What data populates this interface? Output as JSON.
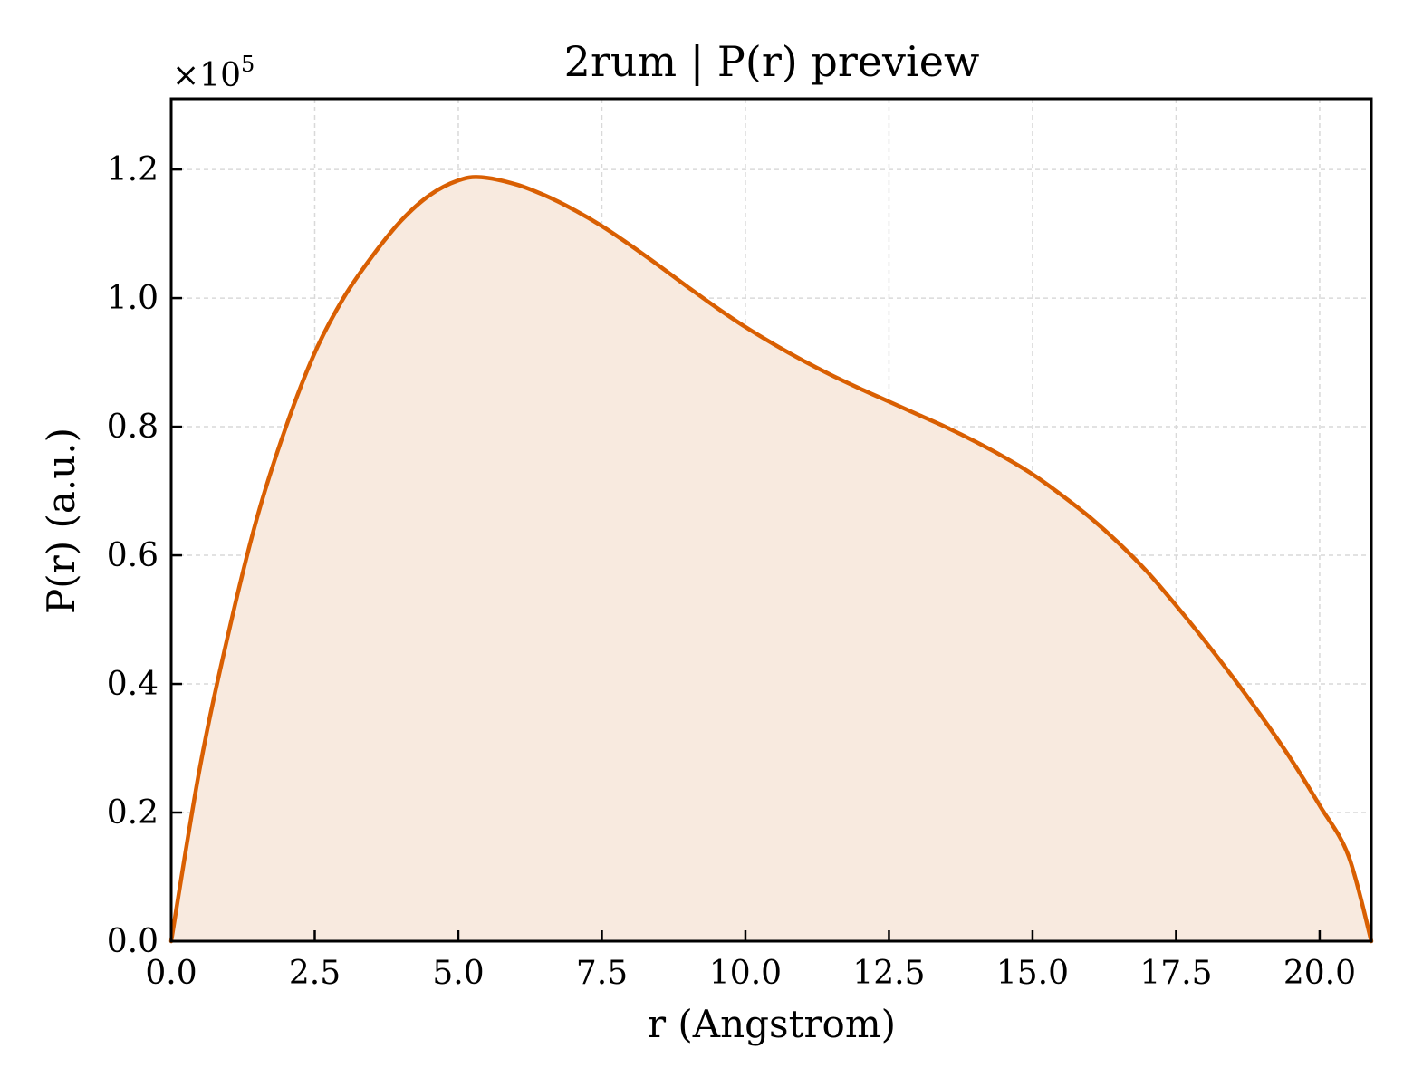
{
  "chart_data": {
    "type": "area",
    "title": "2rum | P(r) preview",
    "xlabel": "r (Angstrom)",
    "ylabel": "P(r) (a.u.)",
    "y_multiplier": {
      "base": "×10",
      "exponent": "5"
    },
    "xlim": [
      0,
      20.9
    ],
    "ylim": [
      0,
      1.31
    ],
    "xticks": [
      0.0,
      2.5,
      5.0,
      7.5,
      10.0,
      12.5,
      15.0,
      17.5,
      20.0
    ],
    "xtick_labels": [
      "0.0",
      "2.5",
      "5.0",
      "7.5",
      "10.0",
      "12.5",
      "15.0",
      "17.5",
      "20.0"
    ],
    "yticks": [
      0.0,
      0.2,
      0.4,
      0.6,
      0.8,
      1.0,
      1.2
    ],
    "ytick_labels": [
      "0.0",
      "0.2",
      "0.4",
      "0.6",
      "0.8",
      "1.0",
      "1.2"
    ],
    "grid": true,
    "colors": {
      "line": "#d95f02",
      "fill": "#f8eadf"
    },
    "series": [
      {
        "x": [
          0.0,
          0.5,
          1.0,
          1.5,
          2.0,
          2.5,
          3.0,
          3.5,
          4.0,
          4.5,
          5.0,
          5.4,
          6.0,
          6.5,
          7.0,
          7.5,
          8.0,
          8.5,
          9.0,
          9.5,
          10.0,
          10.5,
          11.0,
          11.5,
          12.0,
          12.5,
          13.0,
          13.5,
          14.0,
          14.5,
          15.0,
          15.5,
          16.0,
          16.5,
          17.0,
          17.5,
          18.0,
          18.5,
          19.0,
          19.5,
          20.0,
          20.5,
          20.9
        ],
        "y": [
          0.0,
          0.27,
          0.48,
          0.66,
          0.8,
          0.915,
          1.0,
          1.065,
          1.12,
          1.16,
          1.183,
          1.188,
          1.177,
          1.16,
          1.138,
          1.112,
          1.082,
          1.05,
          1.017,
          0.985,
          0.955,
          0.928,
          0.903,
          0.88,
          0.859,
          0.839,
          0.819,
          0.799,
          0.777,
          0.753,
          0.726,
          0.694,
          0.659,
          0.619,
          0.574,
          0.522,
          0.467,
          0.409,
          0.348,
          0.283,
          0.211,
          0.133,
          0.0
        ]
      }
    ]
  }
}
